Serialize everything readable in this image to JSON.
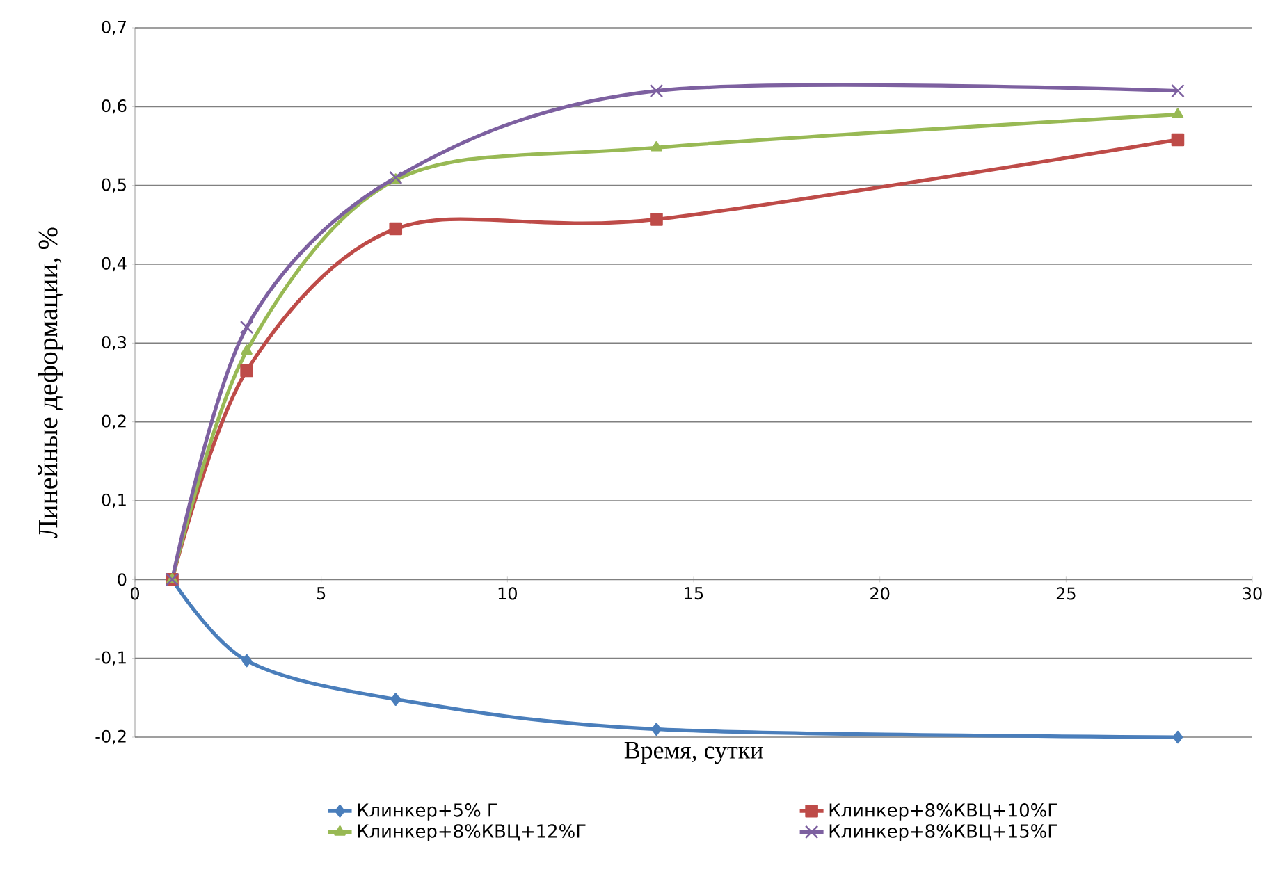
{
  "chart_data": {
    "type": "line",
    "xlabel": "Время, сутки",
    "ylabel": "Линейные деформации, %",
    "x": [
      1,
      3,
      7,
      14,
      28
    ],
    "series": [
      {
        "name": "Клинкер+5% Г",
        "color": "#4a7ebb",
        "marker": "diamond",
        "values": [
          0,
          -0.103,
          -0.152,
          -0.19,
          -0.2
        ]
      },
      {
        "name": "Клинкер+8%КВЦ+10%Г",
        "color": "#be4b48",
        "marker": "square",
        "values": [
          0,
          0.265,
          0.445,
          0.457,
          0.558
        ]
      },
      {
        "name": "Клинкер+8%КВЦ+12%Г",
        "color": "#98b954",
        "marker": "triangle",
        "values": [
          0,
          0.29,
          0.507,
          0.548,
          0.59
        ]
      },
      {
        "name": "Клинкер+8%КВЦ+15%Г",
        "color": "#7d60a0",
        "marker": "cross",
        "values": [
          0,
          0.32,
          0.51,
          0.62,
          0.62
        ]
      }
    ],
    "xlim": [
      0,
      30
    ],
    "xticks": [
      0,
      5,
      10,
      15,
      20,
      25,
      30
    ],
    "ylim": [
      -0.2,
      0.7
    ],
    "yticks": [
      {
        "value": -0.2,
        "label": "-0,2"
      },
      {
        "value": -0.1,
        "label": "-0,1"
      },
      {
        "value": 0,
        "label": "0"
      },
      {
        "value": 0.1,
        "label": "0,1"
      },
      {
        "value": 0.2,
        "label": "0,2"
      },
      {
        "value": 0.3,
        "label": "0,3"
      },
      {
        "value": 0.4,
        "label": "0,4"
      },
      {
        "value": 0.5,
        "label": "0,5"
      },
      {
        "value": 0.6,
        "label": "0,6"
      },
      {
        "value": 0.7,
        "label": "0,7"
      }
    ],
    "grid": "y",
    "legend": "bottom",
    "line_style": "solid"
  }
}
